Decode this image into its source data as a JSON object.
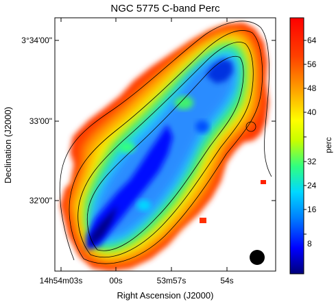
{
  "title": "NGC 5775   C-band  Perc",
  "axes": {
    "x_label": "Right Ascension (J2000)",
    "y_label": "Declination (J2000)",
    "x_ticks": [
      "14h54m03s",
      "00s",
      "53m57s",
      "54s"
    ],
    "y_ticks": [
      "3°34'00\"",
      "33'00\"",
      "32'00\""
    ]
  },
  "colorbar": {
    "label": "perc",
    "ticks": [
      "64",
      "56",
      "48",
      "40",
      "32",
      "24",
      "16",
      "8"
    ],
    "colors": [
      "#00007a",
      "#0000ff",
      "#0080ff",
      "#00d8ff",
      "#30ff80",
      "#c8ff00",
      "#ffff00",
      "#ffa000",
      "#ff4000",
      "#ff0000"
    ]
  },
  "beam": {
    "shape": "filled-circle",
    "color": "#000000"
  }
}
